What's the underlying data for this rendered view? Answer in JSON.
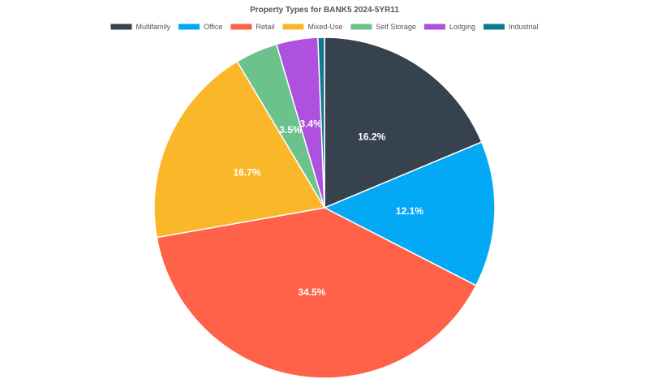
{
  "chart_data": {
    "type": "pie",
    "title": "Property Types for BANK5 2024-5YR11",
    "legend_position": "top",
    "slices": [
      {
        "name": "Multifamily",
        "value": 18.1,
        "label": "16.2%",
        "color": "#36424e"
      },
      {
        "name": "Office",
        "value": 13.4,
        "label": "12.1%",
        "color": "#03a9f4"
      },
      {
        "name": "Retail",
        "value": 38.4,
        "label": "34.5%",
        "color": "#ff6149"
      },
      {
        "name": "Mixed-Use",
        "value": 18.6,
        "label": "16.7%",
        "color": "#fbb72a"
      },
      {
        "name": "Self Storage",
        "value": 3.9,
        "label": "3.5%",
        "color": "#6cc28b"
      },
      {
        "name": "Lodging",
        "value": 3.8,
        "label": "3.4%",
        "color": "#ad51de"
      },
      {
        "name": "Industrial",
        "value": 0.6,
        "label": "",
        "color": "#0f7a8c"
      }
    ]
  }
}
